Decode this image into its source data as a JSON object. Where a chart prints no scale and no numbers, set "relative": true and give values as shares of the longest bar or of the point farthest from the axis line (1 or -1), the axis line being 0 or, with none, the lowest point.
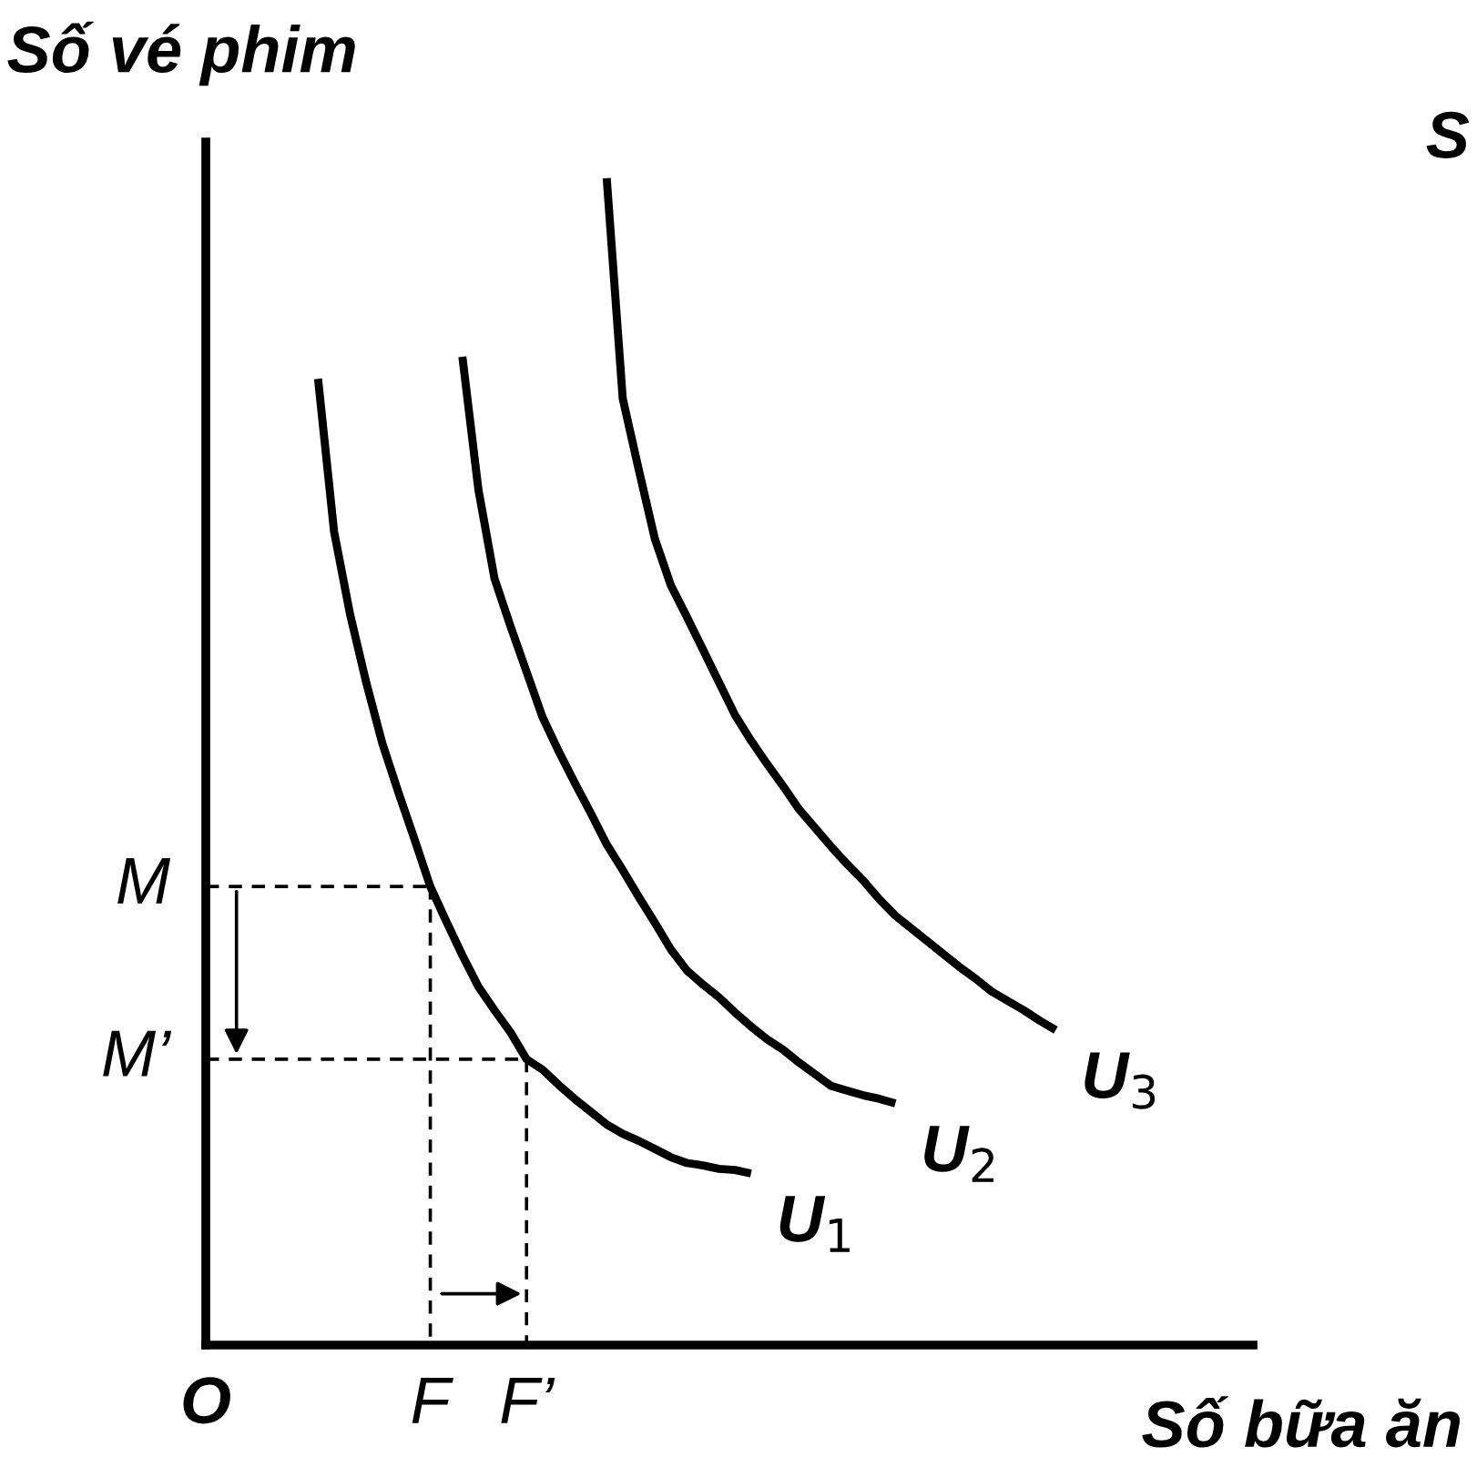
{
  "chart_data": {
    "type": "line",
    "relative": true,
    "xlabel": "Số bữa ăn",
    "ylabel": "Số vé phim",
    "annotations": [
      "M",
      "M’",
      "S"
    ],
    "categories": [
      "O",
      null,
      null,
      null,
      null,
      null,
      null,
      null,
      null,
      null,
      null,
      null,
      null,
      null,
      "F",
      null,
      null,
      null,
      null,
      null,
      "F’",
      null,
      null,
      null,
      null,
      null,
      null,
      null,
      null,
      null,
      null,
      null,
      null,
      null,
      null,
      null,
      null,
      null,
      null,
      null,
      null,
      null,
      null,
      null,
      null,
      null,
      null,
      null,
      null,
      null,
      null,
      null,
      null,
      null,
      null,
      null,
      null,
      null,
      null,
      null,
      null,
      null,
      null,
      null,
      null,
      null
    ],
    "series": [
      {
        "name": "U$_{1}$",
        "color": "#000000",
        "line_style": "solid",
        "values": [
          null,
          null,
          null,
          null,
          null,
          null,
          null,
          0.828,
          0.697,
          0.626,
          0.568,
          0.516,
          0.474,
          0.434,
          0.393,
          0.363,
          0.334,
          0.307,
          0.287,
          0.268,
          0.245,
          0.236,
          0.223,
          0.211,
          0.2,
          0.189,
          0.181,
          0.175,
          0.168,
          0.161,
          0.156,
          0.154,
          0.151,
          0.15,
          0.147,
          null,
          null,
          null,
          null,
          null,
          null,
          null,
          null,
          null,
          null,
          null,
          null,
          null,
          null,
          null,
          null,
          null,
          null,
          null,
          null,
          null,
          null,
          null,
          null,
          null,
          null,
          null,
          null,
          null,
          null,
          null
        ]
      },
      {
        "name": "U$_{2}$",
        "color": "#000000",
        "line_style": "solid",
        "values": [
          null,
          null,
          null,
          null,
          null,
          null,
          null,
          null,
          null,
          null,
          null,
          null,
          null,
          null,
          null,
          null,
          0.847,
          0.733,
          0.657,
          0.616,
          0.577,
          0.538,
          0.509,
          0.482,
          0.456,
          0.429,
          0.407,
          0.384,
          0.362,
          0.339,
          0.321,
          0.309,
          0.298,
          0.285,
          0.273,
          0.262,
          0.253,
          0.242,
          0.232,
          0.222,
          0.218,
          0.214,
          0.211,
          0.207,
          null,
          null,
          null,
          null,
          null,
          null,
          null,
          null,
          null,
          null,
          null,
          null,
          null,
          null,
          null,
          null,
          null,
          null,
          null,
          null,
          null,
          null
        ]
      },
      {
        "name": "U$_{3}$",
        "color": "#000000",
        "line_style": "solid",
        "values": [
          null,
          null,
          null,
          null,
          null,
          null,
          null,
          null,
          null,
          null,
          null,
          null,
          null,
          null,
          null,
          null,
          null,
          null,
          null,
          null,
          null,
          null,
          null,
          null,
          null,
          1,
          0.811,
          0.75,
          0.691,
          0.651,
          0.624,
          0.596,
          0.568,
          0.54,
          0.518,
          0.498,
          0.479,
          0.459,
          0.443,
          0.427,
          0.412,
          0.398,
          0.382,
          0.368,
          0.357,
          0.346,
          0.335,
          0.324,
          0.314,
          0.303,
          0.295,
          0.287,
          0.278,
          0.27,
          null,
          null,
          null,
          null,
          null,
          null,
          null,
          null,
          null,
          null,
          null,
          null
        ]
      },
      {
        "color": "#000000",
        "line_style": "dashed",
        "values": [
          0.393,
          0.393,
          0.393,
          0.393,
          0.393,
          0.393,
          0.393,
          0.393,
          0.393,
          0.393,
          0.393,
          0.393,
          0.393,
          0.393,
          0.393,
          null,
          null,
          null,
          null,
          null,
          null,
          null,
          null,
          null,
          null,
          null,
          null,
          null,
          null,
          null,
          null,
          null,
          null,
          null,
          null,
          null,
          null,
          null,
          null,
          null,
          null,
          null,
          null,
          null,
          null,
          null,
          null,
          null,
          null,
          null,
          null,
          null,
          null,
          null,
          null,
          null,
          null,
          null,
          null,
          null,
          null,
          null,
          null,
          null,
          null,
          null
        ]
      },
      {
        "color": "#000000",
        "line_style": "dashed",
        "values": [
          0.245,
          0.245,
          0.245,
          0.245,
          0.245,
          0.245,
          0.245,
          0.245,
          0.245,
          0.245,
          0.245,
          0.245,
          0.245,
          0.245,
          0.245,
          0.245,
          0.245,
          0.245,
          0.245,
          0.245,
          0.245,
          null,
          null,
          null,
          null,
          null,
          null,
          null,
          null,
          null,
          null,
          null,
          null,
          null,
          null,
          null,
          null,
          null,
          null,
          null,
          null,
          null,
          null,
          null,
          null,
          null,
          null,
          null,
          null,
          null,
          null,
          null,
          null,
          null,
          null,
          null,
          null,
          null,
          null,
          null,
          null,
          null,
          null,
          null,
          null,
          null
        ]
      }
    ]
  }
}
